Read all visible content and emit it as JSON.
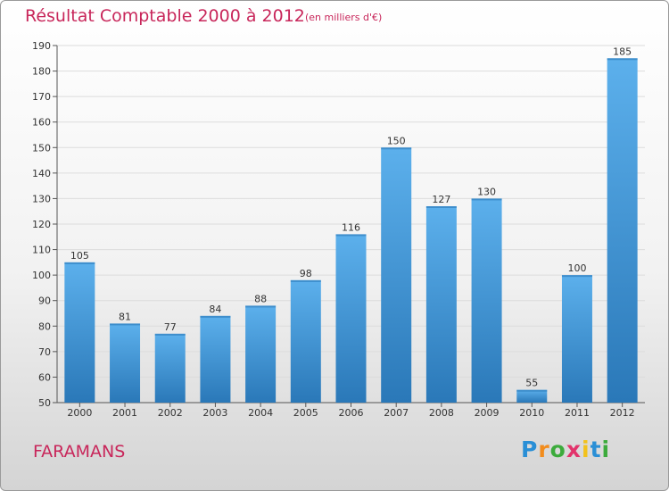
{
  "header": {
    "title": "Résultat Comptable 2000 à 2012",
    "subtitle": "(en milliers d'€)"
  },
  "footer": {
    "town": "FARAMANS",
    "logo_text": [
      "P",
      "r",
      "o",
      "x",
      "i",
      "t",
      "i"
    ],
    "logo_colors": [
      "#2a8fd6",
      "#f28c1c",
      "#3cab3c",
      "#e2336b",
      "#f2c21c",
      "#2a8fd6",
      "#3cab3c"
    ]
  },
  "chart_data": {
    "type": "bar",
    "title": "Résultat Comptable 2000 à 2012",
    "subtitle": "(en milliers d'€)",
    "xlabel": "",
    "ylabel": "",
    "categories": [
      "2000",
      "2001",
      "2002",
      "2003",
      "2004",
      "2005",
      "2006",
      "2007",
      "2008",
      "2009",
      "2010",
      "2011",
      "2012"
    ],
    "values": [
      105,
      81,
      77,
      84,
      88,
      98,
      116,
      150,
      127,
      130,
      55,
      100,
      185
    ],
    "ylim": [
      50,
      190
    ],
    "yticks": [
      50,
      60,
      70,
      80,
      90,
      100,
      110,
      120,
      130,
      140,
      150,
      160,
      170,
      180,
      190
    ],
    "grid": true,
    "bar_color": "#3a96da",
    "bar_color_light": "#5cb0ec",
    "bar_color_dark": "#2a78b8"
  }
}
